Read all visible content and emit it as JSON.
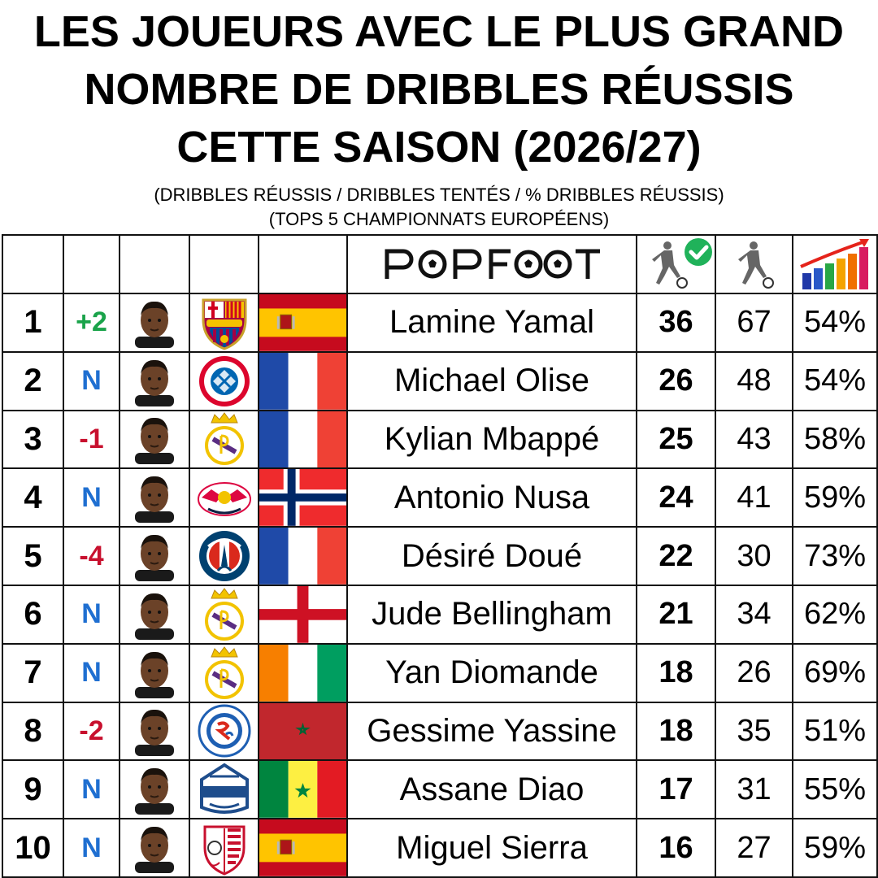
{
  "title": {
    "line1": "LES JOUEURS AVEC LE PLUS GRAND",
    "line2": "NOMBRE DE DRIBBLES RÉUSSIS",
    "line3": "CETTE SAISON (2026/27)"
  },
  "subtitle": {
    "line1": "(DRIBBLES RÉUSSIS / DRIBBLES TENTÉS / % DRIBBLES RÉUSSIS)",
    "line2": "(TOPS 5 CHAMPIONNATS EUROPÉENS)"
  },
  "header": {
    "brand": "PopFoot",
    "icons": [
      "dribble-success-icon",
      "dribble-attempt-icon",
      "percentage-chart-icon"
    ]
  },
  "colors": {
    "up": "#1aa34a",
    "down": "#c8102e",
    "new": "#1f6fd1",
    "check": "#20b25a"
  },
  "players": [
    {
      "rank": "1",
      "move": "+2",
      "move_type": "up",
      "club": "fc-barcelona-crest",
      "flag": "spain",
      "name": "Lamine Yamal",
      "success": "36",
      "attempts": "67",
      "pct": "54%"
    },
    {
      "rank": "2",
      "move": "N",
      "move_type": "new",
      "club": "fc-bayern-munchen-crest",
      "flag": "france",
      "name": "Michael Olise",
      "success": "26",
      "attempts": "48",
      "pct": "54%"
    },
    {
      "rank": "3",
      "move": "-1",
      "move_type": "down",
      "club": "real-madrid-crest",
      "flag": "france",
      "name": "Kylian Mbappé",
      "success": "25",
      "attempts": "43",
      "pct": "58%"
    },
    {
      "rank": "4",
      "move": "N",
      "move_type": "new",
      "club": "rb-leipzig-crest",
      "flag": "norway",
      "name": "Antonio Nusa",
      "success": "24",
      "attempts": "41",
      "pct": "59%"
    },
    {
      "rank": "5",
      "move": "-4",
      "move_type": "down",
      "club": "paris-saint-germain-crest",
      "flag": "france",
      "name": "Désiré Doué",
      "success": "22",
      "attempts": "30",
      "pct": "73%"
    },
    {
      "rank": "6",
      "move": "N",
      "move_type": "new",
      "club": "real-madrid-crest",
      "flag": "england",
      "name": "Jude Bellingham",
      "success": "21",
      "attempts": "34",
      "pct": "62%"
    },
    {
      "rank": "7",
      "move": "N",
      "move_type": "new",
      "club": "real-madrid-crest",
      "flag": "ivory-coast",
      "name": "Yan Diomande",
      "success": "18",
      "attempts": "26",
      "pct": "69%"
    },
    {
      "rank": "8",
      "move": "-2",
      "move_type": "down",
      "club": "rc-strasbourg-crest",
      "flag": "morocco",
      "name": "Gessime Yassine",
      "success": "18",
      "attempts": "35",
      "pct": "51%"
    },
    {
      "rank": "9",
      "move": "N",
      "move_type": "new",
      "club": "como-1907-crest",
      "flag": "senegal",
      "name": "Assane Diao",
      "success": "17",
      "attempts": "31",
      "pct": "55%"
    },
    {
      "rank": "10",
      "move": "N",
      "move_type": "new",
      "club": "sevilla-fc-crest",
      "flag": "spain",
      "name": "Miguel Sierra",
      "success": "16",
      "attempts": "27",
      "pct": "59%"
    }
  ]
}
